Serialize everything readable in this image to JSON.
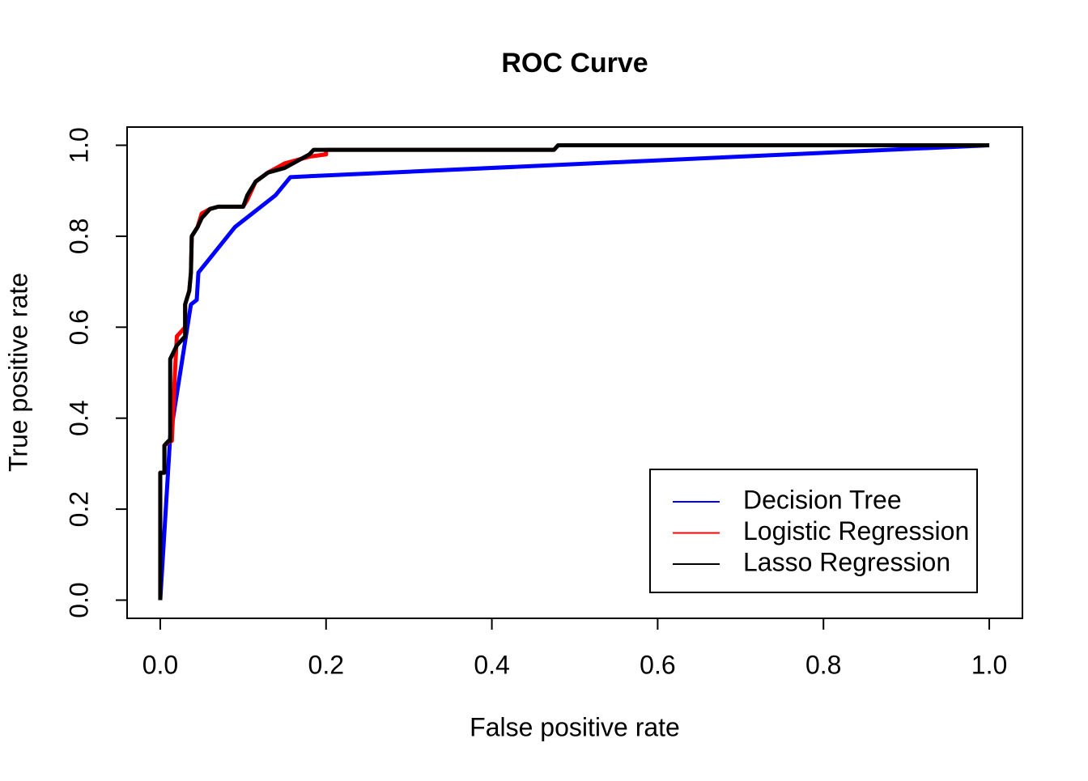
{
  "chart_data": {
    "type": "line",
    "title": "ROC Curve",
    "x_label": "False positive rate",
    "y_label": "True positive rate",
    "xlim": [
      -0.04,
      1.04
    ],
    "ylim": [
      -0.04,
      1.04
    ],
    "xticks": [
      {
        "value": 0,
        "label": "0.0"
      },
      0.2,
      0.4,
      0.6,
      0.8,
      {
        "value": 1,
        "label": "1.0"
      }
    ],
    "yticks": [
      {
        "value": 0,
        "label": "0.0"
      },
      0.2,
      0.4,
      0.6,
      0.8,
      {
        "value": 1,
        "label": "1.0"
      }
    ],
    "legend_position": "bottom-right",
    "series": [
      {
        "name": "Decision Tree",
        "color": "#0000ff",
        "x": [
          0,
          0.012,
          0.037,
          0.044,
          0.046,
          0.09,
          0.139,
          0.157,
          1
        ],
        "values": [
          0,
          0.36,
          0.65,
          0.66,
          0.72,
          0.82,
          0.89,
          0.93,
          1
        ]
      },
      {
        "name": "Logistic Regression",
        "color": "#ff0000",
        "x": [
          0,
          0,
          0.005,
          0.005,
          0.012,
          0.014,
          0.018,
          0.02,
          0.03,
          0.03,
          0.035,
          0.037,
          0.038,
          0.045,
          0.05,
          0.06,
          0.07,
          0.1,
          0.105,
          0.115,
          0.13,
          0.15,
          0.17,
          0.18,
          0.2,
          0.2,
          0.475,
          0.48,
          1
        ],
        "values": [
          0,
          0.28,
          0.28,
          0.34,
          0.35,
          0.35,
          0.51,
          0.58,
          0.6,
          0.65,
          0.68,
          0.72,
          0.8,
          0.82,
          0.85,
          0.86,
          0.865,
          0.865,
          0.88,
          0.92,
          0.94,
          0.96,
          0.97,
          0.975,
          0.98,
          0.99,
          0.99,
          1,
          1
        ]
      },
      {
        "name": "Lasso Regression",
        "color": "#000000",
        "x": [
          0,
          0,
          0.005,
          0.005,
          0.01,
          0.012,
          0.012,
          0.02,
          0.03,
          0.03,
          0.035,
          0.037,
          0.038,
          0.045,
          0.05,
          0.06,
          0.07,
          0.1,
          0.105,
          0.115,
          0.13,
          0.15,
          0.17,
          0.18,
          0.185,
          0.475,
          0.48,
          1
        ],
        "values": [
          0,
          0.28,
          0.28,
          0.34,
          0.35,
          0.35,
          0.53,
          0.56,
          0.58,
          0.65,
          0.68,
          0.72,
          0.8,
          0.82,
          0.84,
          0.86,
          0.865,
          0.865,
          0.89,
          0.92,
          0.94,
          0.95,
          0.97,
          0.98,
          0.99,
          0.99,
          1,
          1
        ]
      }
    ]
  }
}
